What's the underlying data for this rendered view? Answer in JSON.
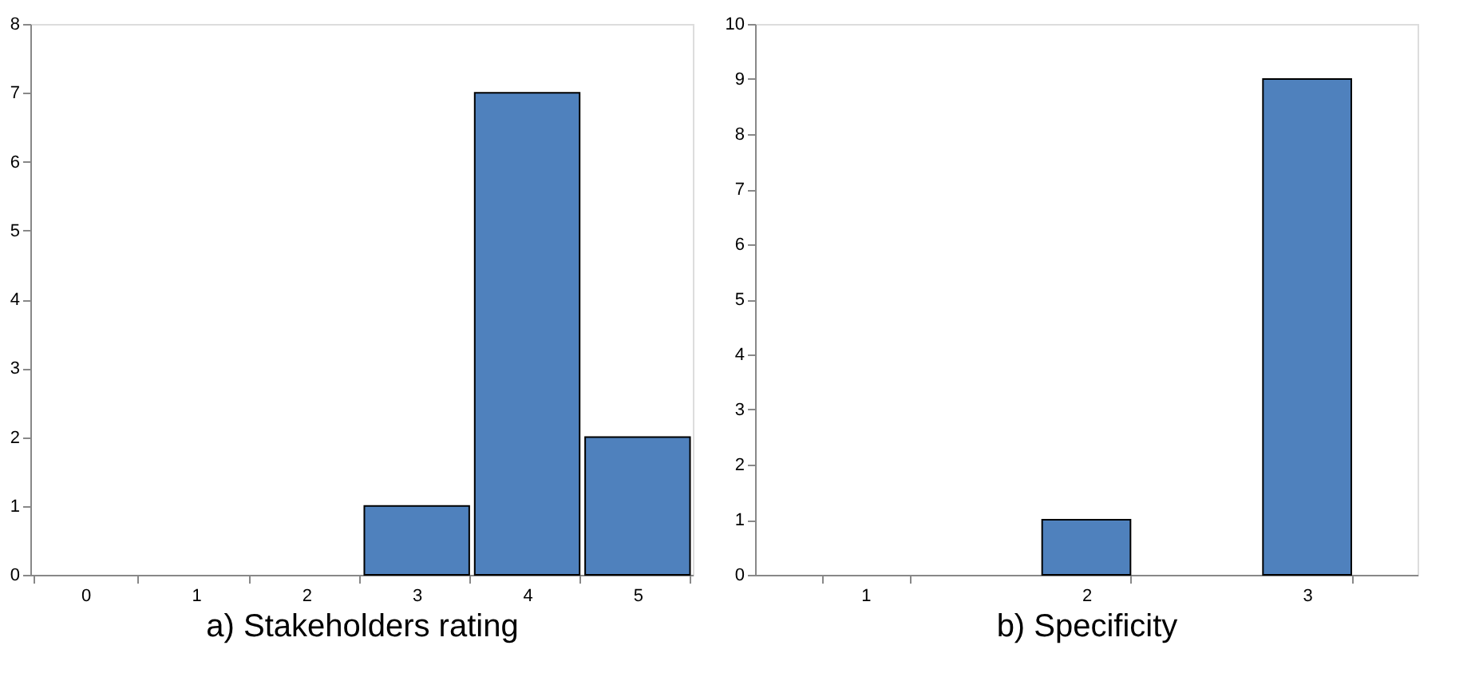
{
  "chart_data": [
    {
      "type": "bar",
      "xlabel": "a) Stakeholders rating",
      "categories": [
        "0",
        "1",
        "2",
        "3",
        "4",
        "5"
      ],
      "values": [
        0,
        0,
        0,
        1,
        7,
        2
      ],
      "color": "#4f81bd",
      "ylim": [
        0,
        8
      ],
      "yticks": [
        0,
        1,
        2,
        3,
        4,
        5,
        6,
        7,
        8
      ],
      "grid": false
    },
    {
      "type": "bar",
      "xlabel": "b) Specificity",
      "categories": [
        "1",
        "2",
        "3"
      ],
      "values": [
        0,
        1,
        9
      ],
      "color": "#4f81bd",
      "ylim": [
        0,
        10
      ],
      "yticks": [
        0,
        1,
        2,
        3,
        4,
        5,
        6,
        7,
        8,
        9,
        10
      ],
      "grid": false
    }
  ]
}
